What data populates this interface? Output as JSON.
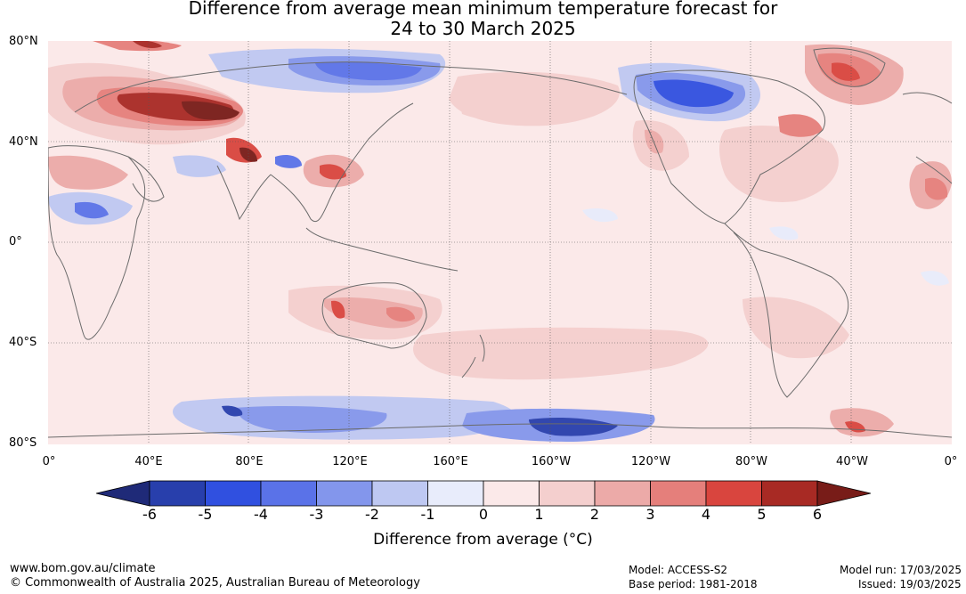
{
  "title_line1": "Difference from average mean minimum temperature forecast for",
  "title_line2": "24 to 30 March 2025",
  "lat_labels": [
    "80°N",
    "40°N",
    "0°",
    "40°S",
    "80°S"
  ],
  "lon_labels": [
    "0°",
    "40°E",
    "80°E",
    "120°E",
    "160°E",
    "160°W",
    "120°W",
    "80°W",
    "40°W",
    "0°"
  ],
  "colorbar": {
    "ticks": [
      "-6",
      "-5",
      "-4",
      "-3",
      "-2",
      "-1",
      "0",
      "1",
      "2",
      "3",
      "4",
      "5",
      "6"
    ],
    "colors": [
      "#1f2a78",
      "#283fac",
      "#3050e0",
      "#5a72e8",
      "#8396ec",
      "#bec8f2",
      "#e8ecfb",
      "#fbe9e9",
      "#f4cfce",
      "#ecaaa8",
      "#e57f7b",
      "#d9453e",
      "#a82a24",
      "#781c18"
    ],
    "label": "Difference from average (°C)"
  },
  "footer": {
    "url": "www.bom.gov.au/climate",
    "copyright": "© Commonwealth of Australia 2025, Australian Bureau of Meteorology",
    "model": "Model: ACCESS-S2",
    "base_period": "Base period: 1981-2018",
    "model_run": "Model run: 17/03/2025",
    "issued": "Issued: 19/03/2025"
  }
}
